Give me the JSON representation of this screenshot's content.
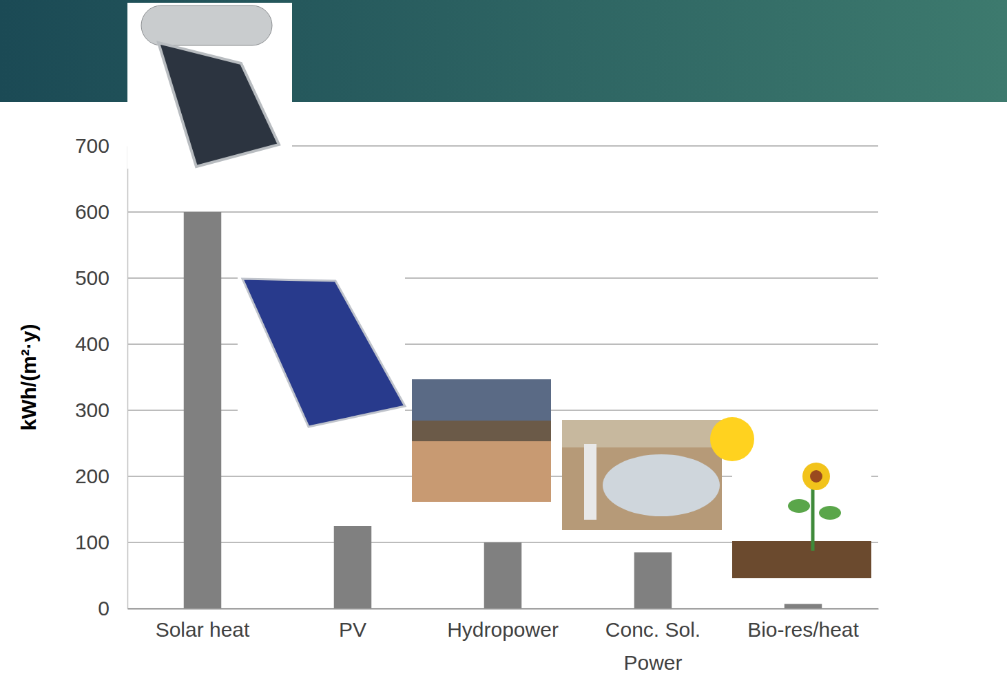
{
  "chart_data": {
    "type": "bar",
    "categories": [
      "Solar heat",
      "PV",
      "Hydropower",
      "Conc. Sol. Power",
      "Bio-res/heat"
    ],
    "values": [
      600,
      125,
      100,
      85,
      7
    ],
    "color": "#808080",
    "y_label": "kWh/(m²·y)",
    "ylim": [
      0,
      700
    ],
    "yticks": [
      0,
      100,
      200,
      300,
      400,
      500,
      600,
      700
    ],
    "grid": true
  }
}
